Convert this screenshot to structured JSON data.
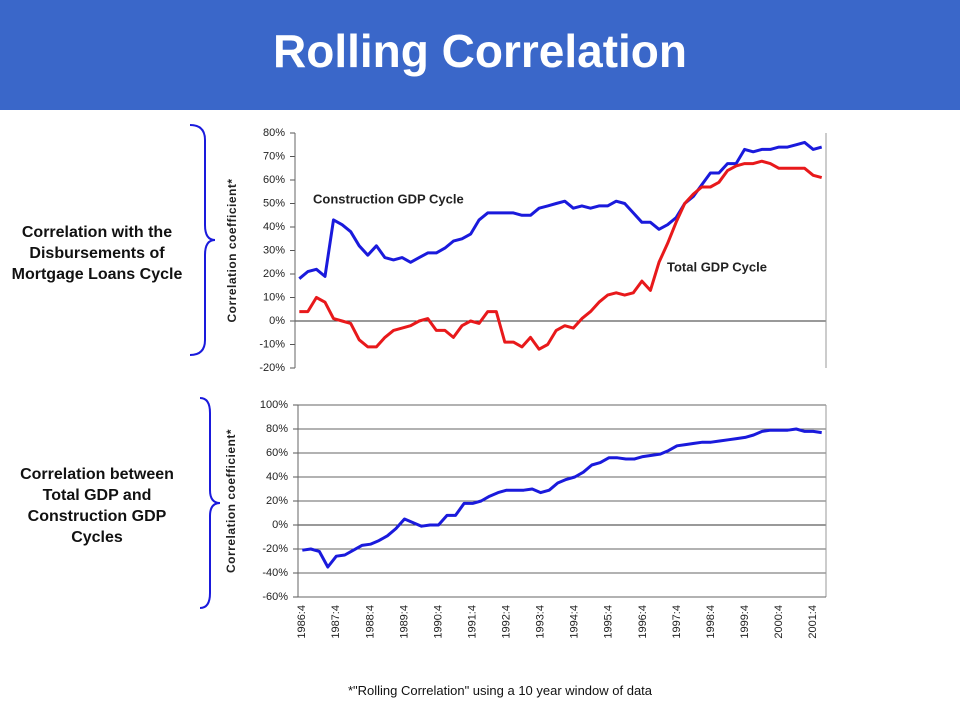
{
  "title": "Rolling Correlation",
  "footnote": "*\"Rolling Correlation\" using a 10 year window of data",
  "panels": [
    {
      "label": "Correlation with the Disbursements of Mortgage Loans Cycle"
    },
    {
      "label": "Correlation between Total GDP and Construction GDP Cycles"
    }
  ],
  "chart_data": [
    {
      "type": "line",
      "y_label": "Correlation coefficient*",
      "ylim": [
        -20,
        80
      ],
      "yticks": [
        {
          "value": -20,
          "label": "-20%"
        },
        {
          "value": -10,
          "label": "-10%"
        },
        {
          "value": 0,
          "label": "0%"
        },
        {
          "value": 10,
          "label": "10%"
        },
        {
          "value": 20,
          "label": "20%"
        },
        {
          "value": 30,
          "label": "30%"
        },
        {
          "value": 40,
          "label": "40%"
        },
        {
          "value": 50,
          "label": "50%"
        },
        {
          "value": 60,
          "label": "60%"
        },
        {
          "value": 70,
          "label": "70%"
        },
        {
          "value": 80,
          "label": "80%"
        }
      ],
      "grid": false,
      "series": [
        {
          "name": "Construction GDP Cycle",
          "color": "#1a1adc",
          "values": [
            18,
            21,
            22,
            19,
            43,
            41,
            38,
            32,
            28,
            32,
            27,
            26,
            27,
            25,
            27,
            29,
            29,
            31,
            34,
            35,
            37,
            43,
            46,
            46,
            46,
            46,
            45,
            45,
            48,
            49,
            50,
            51,
            48,
            49,
            48,
            49,
            49,
            51,
            50,
            46,
            42,
            42,
            39,
            41,
            44,
            50,
            53,
            58,
            63,
            63,
            67,
            67,
            73,
            72,
            73,
            73,
            74,
            74,
            75,
            76,
            73,
            74
          ]
        },
        {
          "name": "Total GDP Cycle",
          "color": "#e8191b",
          "values": [
            4,
            4,
            10,
            8,
            1,
            0,
            -1,
            -8,
            -11,
            -11,
            -7,
            -4,
            -3,
            -2,
            0,
            1,
            -4,
            -4,
            -7,
            -2,
            0,
            -1,
            4,
            4,
            -9,
            -9,
            -11,
            -7,
            -12,
            -10,
            -4,
            -2,
            -3,
            1,
            4,
            8,
            11,
            12,
            11,
            12,
            17,
            13,
            25,
            33,
            42,
            50,
            54,
            57,
            57,
            59,
            64,
            66,
            67,
            67,
            68,
            67,
            65,
            65,
            65,
            65,
            62,
            61
          ]
        }
      ]
    },
    {
      "type": "line",
      "y_label": "Correlation coefficient*",
      "categories": [
        "1986:4",
        null,
        null,
        null,
        "1987:4",
        null,
        null,
        null,
        "1988:4",
        null,
        null,
        null,
        "1989:4",
        null,
        null,
        null,
        "1990:4",
        null,
        null,
        null,
        "1991:4",
        null,
        null,
        null,
        "1992:4",
        null,
        null,
        null,
        "1993:4",
        null,
        null,
        null,
        "1994:4",
        null,
        null,
        null,
        "1995:4",
        null,
        null,
        null,
        "1996:4",
        null,
        null,
        null,
        "1997:4",
        null,
        null,
        null,
        "1998:4",
        null,
        null,
        null,
        "1999:4",
        null,
        null,
        null,
        "2000:4",
        null,
        null,
        null,
        "2001:4",
        null
      ],
      "ylim": [
        -60,
        100
      ],
      "yticks": [
        {
          "value": -60,
          "label": "-60%"
        },
        {
          "value": -40,
          "label": "-40%"
        },
        {
          "value": -20,
          "label": "-20%"
        },
        {
          "value": 0,
          "label": "0%"
        },
        {
          "value": 20,
          "label": "20%"
        },
        {
          "value": 40,
          "label": "40%"
        },
        {
          "value": 60,
          "label": "60%"
        },
        {
          "value": 80,
          "label": "80%"
        },
        {
          "value": 100,
          "label": "100%"
        }
      ],
      "grid": true,
      "series": [
        {
          "color": "#1a1adc",
          "values": [
            -21,
            -20,
            -22,
            -35,
            -26,
            -25,
            -21,
            -17,
            -16,
            -13,
            -9,
            -3,
            5,
            2,
            -1,
            0,
            0,
            8,
            8,
            18,
            18,
            20,
            24,
            27,
            29,
            29,
            29,
            30,
            27,
            29,
            35,
            38,
            40,
            44,
            50,
            52,
            56,
            56,
            55,
            55,
            57,
            58,
            59,
            62,
            66,
            67,
            68,
            69,
            69,
            70,
            71,
            72,
            73,
            75,
            78,
            79,
            79,
            79,
            80,
            78,
            78,
            77
          ]
        }
      ]
    }
  ]
}
